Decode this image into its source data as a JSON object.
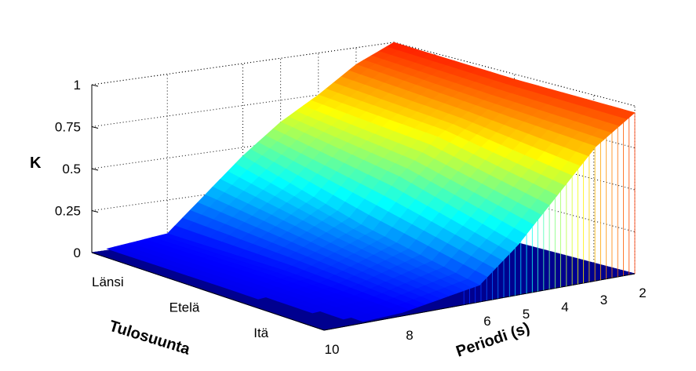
{
  "chart_data": {
    "type": "surface",
    "title": "",
    "zlabel": "K",
    "xlabel": "Periodi (s)",
    "ylabel": "Tulosuunta",
    "zlim": [
      0,
      1
    ],
    "z_ticks": [
      0,
      0.25,
      0.5,
      0.75,
      1
    ],
    "z_tick_labels": [
      "0",
      "0.25",
      "0.5",
      "0.75",
      "1"
    ],
    "x_ticks": [
      10,
      8,
      6,
      5,
      4,
      3,
      2
    ],
    "x_tick_labels": [
      "10",
      "8",
      "6",
      "5",
      "4",
      "3",
      "2"
    ],
    "y_categories": [
      "Länsi",
      "Etelä",
      "Itä"
    ],
    "grid": true,
    "colormap": "jet",
    "surface_color": "#00008f",
    "periods": [
      2,
      3,
      4,
      5,
      6,
      8,
      10
    ],
    "directions": [
      1,
      2,
      3
    ],
    "values": [
      [
        1.0,
        0.9,
        0.75,
        0.62,
        0.45,
        0.05,
        0.0
      ],
      [
        0.97,
        0.85,
        0.7,
        0.5,
        0.25,
        0.05,
        0.0
      ],
      [
        0.96,
        0.8,
        0.55,
        0.3,
        0.1,
        0.02,
        0.0
      ]
    ]
  }
}
